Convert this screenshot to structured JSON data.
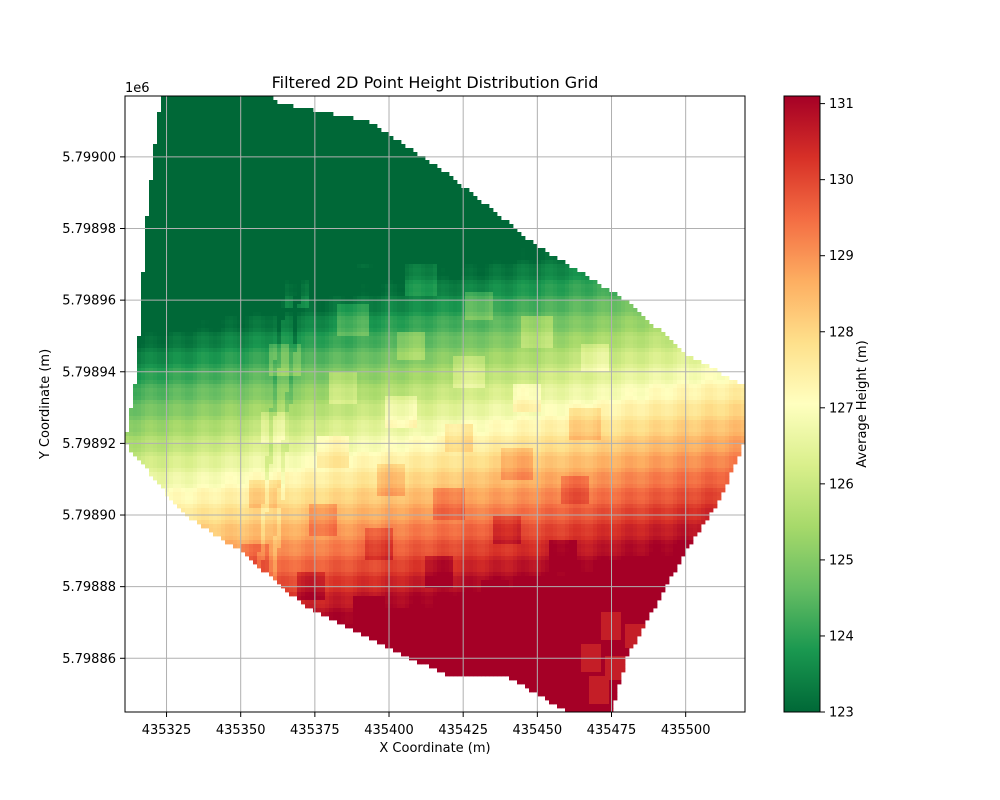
{
  "chart_data": {
    "type": "heatmap",
    "title": "Filtered 2D Point Height Distribution Grid",
    "xlabel": "X Coordinate (m)",
    "ylabel": "Y Coordinate (m)",
    "y_offset_label": "1e6",
    "xlim": [
      435311,
      435520
    ],
    "ylim": [
      5.798845,
      5.799017
    ],
    "x_ticks": [
      435325,
      435350,
      435375,
      435400,
      435425,
      435450,
      435475,
      435500
    ],
    "x_tick_labels": [
      "435325",
      "435350",
      "435375",
      "435400",
      "435425",
      "435450",
      "435475",
      "435500"
    ],
    "y_ticks": [
      5.79886,
      5.79888,
      5.7989,
      5.79892,
      5.79894,
      5.79896,
      5.79898,
      5.799
    ],
    "y_tick_labels": [
      "5.79886",
      "5.79888",
      "5.79890",
      "5.79892",
      "5.79894",
      "5.79896",
      "5.79898",
      "5.79900"
    ],
    "grid": true,
    "colormap": "RdYlGn_r",
    "colormap_stops": [
      "#006837",
      "#1a9850",
      "#66bd63",
      "#a6d96a",
      "#d9ef8b",
      "#ffffbf",
      "#fee08b",
      "#fdae61",
      "#f46d43",
      "#d73027",
      "#a50026"
    ],
    "colorbar": {
      "label": "Average Height (m)",
      "range": [
        123,
        131.1
      ],
      "ticks": [
        123,
        124,
        125,
        126,
        127,
        128,
        129,
        130,
        131
      ],
      "tick_labels": [
        "123",
        "124",
        "125",
        "126",
        "127",
        "128",
        "129",
        "130",
        "131"
      ]
    },
    "height_field": {
      "footprint_xy": [
        [
          435325.5,
          5.79903
        ],
        [
          435348,
          5.79903
        ],
        [
          435363,
          5.799015
        ],
        [
          435393,
          5.79901
        ],
        [
          435420,
          5.798995
        ],
        [
          435450,
          5.798975
        ],
        [
          435480,
          5.79896
        ],
        [
          435500,
          5.798945
        ],
        [
          435522,
          5.798935
        ],
        [
          435522,
          5.798925
        ],
        [
          435512,
          5.798905
        ],
        [
          435500,
          5.79889
        ],
        [
          435480,
          5.79886
        ],
        [
          435475,
          5.798845
        ],
        [
          435460,
          5.798845
        ],
        [
          435440,
          5.798855
        ],
        [
          435420,
          5.798855
        ],
        [
          435395,
          5.798865
        ],
        [
          435371,
          5.798875
        ],
        [
          435350,
          5.79889
        ],
        [
          435331,
          5.7989
        ],
        [
          435311,
          5.79892
        ],
        [
          435315,
          5.79894
        ],
        [
          435318,
          5.79898
        ],
        [
          435322,
          5.79901
        ]
      ],
      "base_height": 126.2,
      "gradient_per_m_x": 0.016,
      "gradient_per_m_y": -0.09,
      "reference_xy": [
        435410,
        5.79893
      ],
      "height_range": [
        123,
        131.1
      ]
    },
    "building_grid": {
      "rows": 6,
      "cols": 6,
      "origin_xy": [
        435372,
        5.79898
      ],
      "row_step_xy": [
        -3.5,
        -1.85e-05
      ],
      "col_step_xy": [
        19.5,
        -7.2e-06
      ],
      "block_size": [
        10,
        8.5e-06
      ],
      "height_offset": 0.6
    },
    "red_blocks": {
      "centers_xy": [
        [
          435468,
          5.79886
        ],
        [
          435477,
          5.798857
        ],
        [
          435485,
          5.798854
        ],
        [
          435471,
          5.798851
        ],
        [
          435480,
          5.798848
        ],
        [
          435488,
          5.798846
        ],
        [
          435475,
          5.798869
        ],
        [
          435484,
          5.798866
        ]
      ],
      "height": 130.6
    },
    "facade_lines": {
      "lines_xy": [
        [
          [
            435368,
            5.799
          ],
          [
            435356,
            5.79888
          ]
        ],
        [
          [
            435373,
            5.799
          ],
          [
            435361,
            5.79888
          ]
        ]
      ],
      "height_offset": -0.5
    }
  }
}
